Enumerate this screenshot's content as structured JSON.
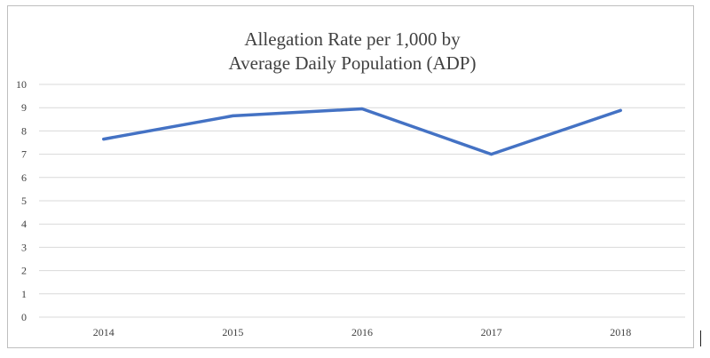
{
  "chart_data": {
    "type": "line",
    "title": "Allegation Rate per 1,000 by",
    "subtitle": "Average Daily Population (ADP)",
    "xlabel": "",
    "ylabel": "",
    "categories": [
      "2014",
      "2015",
      "2016",
      "2017",
      "2018"
    ],
    "series": [
      {
        "name": "Allegation Rate per 1,000",
        "values": [
          7.65,
          8.65,
          8.95,
          7.0,
          8.88
        ],
        "color": "#4472c4"
      }
    ],
    "ylim": [
      0,
      10
    ],
    "yticks": [
      "0",
      "1",
      "2",
      "3",
      "4",
      "5",
      "6",
      "7",
      "8",
      "9",
      "10"
    ],
    "grid": true,
    "legend": "none"
  }
}
